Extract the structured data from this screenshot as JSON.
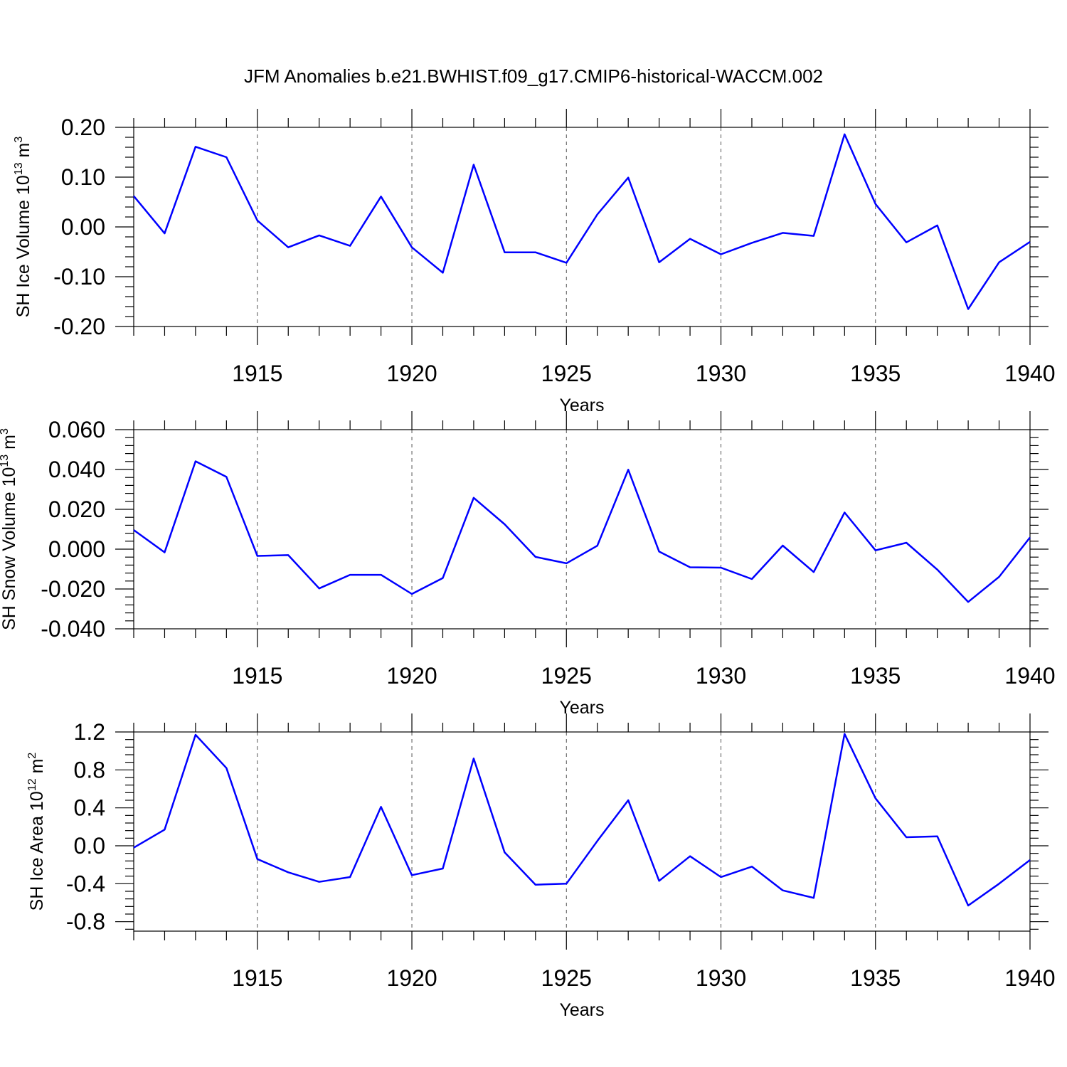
{
  "figure": {
    "title": "JFM Anomalies b.e21.BWHIST.f09_g17.CMIP6-historical-WACCM.002",
    "line_color": "#0000ff",
    "grid": "dashed vertical lines at major x ticks"
  },
  "chart_data": [
    {
      "type": "line",
      "ylabel": "SH Ice Volume 10^13 m^3",
      "ylabel_main": "SH Ice Volume 10",
      "ylabel_exp": "13",
      "ylabel_unit": " m",
      "ylabel_unit_exp": "3",
      "xlabel": "Years",
      "xlim": [
        1911,
        1940
      ],
      "ylim": [
        -0.2,
        0.2
      ],
      "x_ticks": [
        1915,
        1920,
        1925,
        1930,
        1935,
        1940
      ],
      "x_tick_labels": [
        "1915",
        "1920",
        "1925",
        "1930",
        "1935",
        "1940"
      ],
      "y_ticks": [
        0.2,
        0.1,
        0.0,
        -0.1,
        -0.2
      ],
      "y_tick_labels": [
        "0.20",
        "0.10",
        "0.00",
        "-0.10",
        "-0.20"
      ],
      "x": [
        1911,
        1912,
        1913,
        1914,
        1915,
        1916,
        1917,
        1918,
        1919,
        1920,
        1921,
        1922,
        1923,
        1924,
        1925,
        1926,
        1927,
        1928,
        1929,
        1930,
        1931,
        1932,
        1933,
        1934,
        1935,
        1936,
        1937,
        1938,
        1939,
        1940
      ],
      "y": [
        0.062,
        -0.013,
        0.161,
        0.14,
        0.013,
        -0.041,
        -0.017,
        -0.038,
        0.061,
        -0.041,
        -0.092,
        0.125,
        -0.051,
        -0.051,
        -0.072,
        0.025,
        0.099,
        -0.071,
        -0.024,
        -0.055,
        -0.032,
        -0.012,
        -0.018,
        0.186,
        0.046,
        -0.031,
        0.003,
        -0.165,
        -0.071,
        -0.03
      ]
    },
    {
      "type": "line",
      "ylabel": "SH Snow Volume 10^13 m^3",
      "ylabel_main": "SH Snow Volume 10",
      "ylabel_exp": "13",
      "ylabel_unit": " m",
      "ylabel_unit_exp": "3",
      "xlabel": "Years",
      "xlim": [
        1911,
        1940
      ],
      "ylim": [
        -0.04,
        0.06
      ],
      "x_ticks": [
        1915,
        1920,
        1925,
        1930,
        1935,
        1940
      ],
      "x_tick_labels": [
        "1915",
        "1920",
        "1925",
        "1930",
        "1935",
        "1940"
      ],
      "y_ticks": [
        0.06,
        0.04,
        0.02,
        0.0,
        -0.02,
        -0.04
      ],
      "y_tick_labels": [
        "0.060",
        "0.040",
        "0.020",
        "0.000",
        "-0.020",
        "-0.040"
      ],
      "x": [
        1911,
        1912,
        1913,
        1914,
        1915,
        1916,
        1917,
        1918,
        1919,
        1920,
        1921,
        1922,
        1923,
        1924,
        1925,
        1926,
        1927,
        1928,
        1929,
        1930,
        1931,
        1932,
        1933,
        1934,
        1935,
        1936,
        1937,
        1938,
        1939,
        1940
      ],
      "y": [
        0.0096,
        -0.0016,
        0.0441,
        0.0363,
        -0.0034,
        -0.003,
        -0.0197,
        -0.0129,
        -0.0129,
        -0.0225,
        -0.0145,
        0.0258,
        0.0125,
        -0.0039,
        -0.0071,
        0.0017,
        0.0399,
        -0.0012,
        -0.0091,
        -0.0093,
        -0.015,
        0.0018,
        -0.0115,
        0.0184,
        -0.0006,
        0.0032,
        -0.0103,
        -0.0265,
        -0.0139,
        0.0059
      ]
    },
    {
      "type": "line",
      "ylabel": "SH Ice Area 10^12 m^2",
      "ylabel_main": "SH Ice Area 10",
      "ylabel_exp": "12",
      "ylabel_unit": " m",
      "ylabel_unit_exp": "2",
      "xlabel": "Years",
      "xlim": [
        1911,
        1940
      ],
      "ylim": [
        -0.9,
        1.2
      ],
      "x_ticks": [
        1915,
        1920,
        1925,
        1930,
        1935,
        1940
      ],
      "x_tick_labels": [
        "1915",
        "1920",
        "1925",
        "1930",
        "1935",
        "1940"
      ],
      "y_ticks": [
        1.2,
        0.8,
        0.4,
        0.0,
        -0.4,
        -0.8
      ],
      "y_tick_labels": [
        "1.2",
        "0.8",
        "0.4",
        "0.0",
        "-0.4",
        "-0.8"
      ],
      "x": [
        1911,
        1912,
        1913,
        1914,
        1915,
        1916,
        1917,
        1918,
        1919,
        1920,
        1921,
        1922,
        1923,
        1924,
        1925,
        1926,
        1927,
        1928,
        1929,
        1930,
        1931,
        1932,
        1933,
        1934,
        1935,
        1936,
        1937,
        1938,
        1939,
        1940
      ],
      "y": [
        -0.02,
        0.17,
        1.17,
        0.82,
        -0.14,
        -0.28,
        -0.38,
        -0.33,
        0.41,
        -0.31,
        -0.24,
        0.92,
        -0.07,
        -0.41,
        -0.4,
        0.05,
        0.48,
        -0.37,
        -0.11,
        -0.33,
        -0.22,
        -0.47,
        -0.55,
        1.18,
        0.5,
        0.09,
        0.1,
        -0.63,
        -0.4,
        -0.15
      ]
    }
  ]
}
